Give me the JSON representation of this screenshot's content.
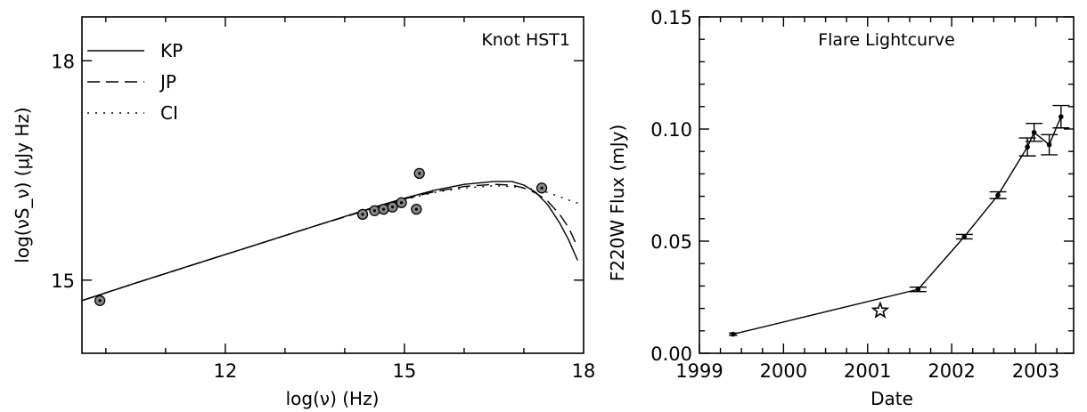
{
  "chart_data": [
    {
      "type": "line",
      "title": "Knot HST1",
      "xlabel": "log(ν) (Hz)",
      "ylabel": "log(νS_ν) (μJy Hz)",
      "xlim": [
        9.6,
        18
      ],
      "ylim": [
        14,
        18.6
      ],
      "x_ticks": [
        12,
        15,
        18
      ],
      "y_ticks": [
        15,
        18
      ],
      "grid": false,
      "legend_position": "top-left",
      "series": [
        {
          "name": "KP",
          "style": "solid",
          "x": [
            9.6,
            10.5,
            11.5,
            12.5,
            13.5,
            14.5,
            15.0,
            15.5,
            16.0,
            16.5,
            16.8,
            17.0,
            17.2,
            17.4,
            17.6,
            17.75,
            17.9
          ],
          "y": [
            14.72,
            14.96,
            15.22,
            15.48,
            15.74,
            16.0,
            16.12,
            16.23,
            16.31,
            16.35,
            16.35,
            16.3,
            16.2,
            16.03,
            15.78,
            15.55,
            15.27
          ]
        },
        {
          "name": "JP",
          "style": "dashed",
          "x": [
            9.6,
            10.5,
            11.5,
            12.5,
            13.5,
            14.5,
            15.0,
            15.5,
            16.0,
            16.5,
            16.8,
            17.0,
            17.2,
            17.4,
            17.6,
            17.75,
            17.9
          ],
          "y": [
            14.72,
            14.96,
            15.22,
            15.48,
            15.74,
            15.99,
            16.11,
            16.21,
            16.28,
            16.31,
            16.3,
            16.26,
            16.19,
            16.08,
            15.9,
            15.72,
            15.45
          ]
        },
        {
          "name": "CI",
          "style": "dotted",
          "x": [
            9.6,
            10.5,
            11.5,
            12.5,
            13.5,
            14.5,
            15.0,
            15.5,
            16.0,
            16.5,
            16.8,
            17.0,
            17.2,
            17.4,
            17.6,
            17.8,
            17.95
          ],
          "y": [
            14.72,
            14.96,
            15.22,
            15.48,
            15.74,
            15.99,
            16.1,
            16.2,
            16.26,
            16.29,
            16.28,
            16.26,
            16.24,
            16.2,
            16.14,
            16.08,
            16.04
          ]
        }
      ],
      "points": {
        "x": [
          9.9,
          14.3,
          14.5,
          14.65,
          14.8,
          14.95,
          15.2,
          15.25,
          17.3
        ],
        "y": [
          14.72,
          15.9,
          15.95,
          15.97,
          16.0,
          16.06,
          15.97,
          16.46,
          16.26
        ]
      }
    },
    {
      "type": "line",
      "title": "Flare Lightcurve",
      "xlabel": "Date",
      "ylabel": "F220W Flux (mJy)",
      "xlim": [
        1999.0,
        2003.45
      ],
      "ylim": [
        0.0,
        0.15
      ],
      "x_ticks": [
        "1999",
        "2000",
        "2001",
        "2002",
        "2003"
      ],
      "y_ticks": [
        "0.00",
        "0.05",
        "0.10",
        "0.15"
      ],
      "grid": false,
      "series": [
        {
          "name": "",
          "x": [
            1999.4,
            2001.6,
            2002.15,
            2002.55,
            2002.9,
            2002.98,
            2003.16,
            2003.3
          ],
          "y": [
            0.0085,
            0.0285,
            0.052,
            0.0705,
            0.092,
            0.0985,
            0.093,
            0.1055
          ],
          "yerr": [
            0.0005,
            0.001,
            0.001,
            0.0015,
            0.004,
            0.004,
            0.0045,
            0.005
          ],
          "xerr": [
            0.05,
            0.1,
            0.1,
            0.1,
            0.1,
            0.1,
            0.1,
            0.1
          ]
        }
      ],
      "star_marker": {
        "x": 2001.15,
        "y": 0.019
      }
    }
  ]
}
